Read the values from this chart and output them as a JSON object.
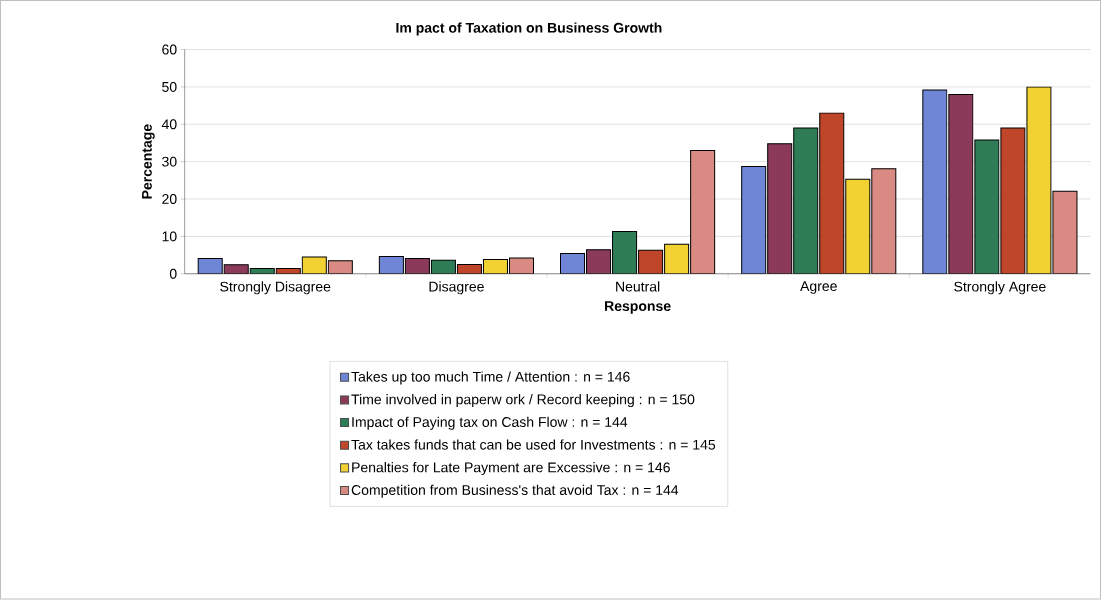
{
  "chart_data": {
    "type": "bar",
    "title": "Im pact of Taxation on Business Growth",
    "xlabel": "Response",
    "ylabel": "Percentage",
    "categories": [
      "Strongly Disagree",
      "Disagree",
      "Neutral",
      "Agree",
      "Strongly Agree"
    ],
    "series": [
      {
        "name": "Takes up too much Time / Attention : n = 146",
        "color": "#6f86d6",
        "values": [
          4.1,
          4.6,
          5.4,
          28.7,
          49.2
        ]
      },
      {
        "name": "Time involved in paperw ork / Record keeping : n = 150",
        "color": "#8b3a5a",
        "values": [
          2.4,
          4.1,
          6.4,
          34.8,
          48.0
        ]
      },
      {
        "name": "Impact of Paying tax on Cash Flow  : n = 144",
        "color": "#2e7d57",
        "values": [
          1.4,
          3.6,
          11.3,
          39.0,
          35.8
        ]
      },
      {
        "name": "Tax takes funds that can be used for Investments : n = 145",
        "color": "#c0462a",
        "values": [
          1.4,
          2.5,
          6.3,
          43.0,
          39.0
        ]
      },
      {
        "name": "Penalties for Late Payment are Excessive : n = 146",
        "color": "#f2d233",
        "values": [
          4.5,
          3.8,
          7.9,
          25.3,
          50.0
        ]
      },
      {
        "name": "Competition from Business's that avoid Tax : n = 144",
        "color": "#d98a82",
        "values": [
          3.5,
          4.2,
          33.0,
          28.1,
          22.1
        ]
      }
    ],
    "ylim": [
      0,
      60
    ],
    "yticks": [
      0,
      10,
      20,
      30,
      40,
      50,
      60
    ],
    "grid": "y",
    "legend": "bottom"
  }
}
